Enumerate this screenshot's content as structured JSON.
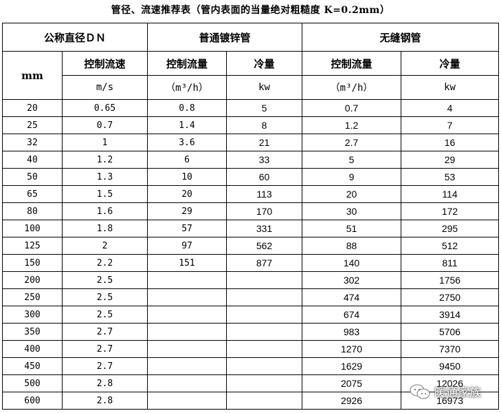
{
  "title": "管径、流速推荐表（管内表面的当量绝对粗糙度 K=0.2mm）",
  "header": {
    "dn": "公称直径ＤＮ",
    "galvanized": "普通镀锌管",
    "seamless": "无缝钢管",
    "mm": "mm",
    "control_speed": "控制流速",
    "control_flow": "控制流量",
    "cooling": "冷量",
    "unit_ms": "m/s",
    "unit_flow": "（m³/h）",
    "unit_kw": "kw"
  },
  "rows": [
    {
      "dn": "20",
      "speed": "0.65",
      "g_flow": "0.8",
      "g_kw": "5",
      "s_flow": "0.7",
      "s_kw": "4"
    },
    {
      "dn": "25",
      "speed": "0.7",
      "g_flow": "1.4",
      "g_kw": "8",
      "s_flow": "1.2",
      "s_kw": "7"
    },
    {
      "dn": "32",
      "speed": "1",
      "g_flow": "3.6",
      "g_kw": "21",
      "s_flow": "2.7",
      "s_kw": "16"
    },
    {
      "dn": "40",
      "speed": "1.2",
      "g_flow": "6",
      "g_kw": "33",
      "s_flow": "5",
      "s_kw": "29"
    },
    {
      "dn": "50",
      "speed": "1.3",
      "g_flow": "10",
      "g_kw": "60",
      "s_flow": "9",
      "s_kw": "53"
    },
    {
      "dn": "65",
      "speed": "1.5",
      "g_flow": "20",
      "g_kw": "113",
      "s_flow": "20",
      "s_kw": "114"
    },
    {
      "dn": "80",
      "speed": "1.6",
      "g_flow": "29",
      "g_kw": "170",
      "s_flow": "30",
      "s_kw": "172"
    },
    {
      "dn": "100",
      "speed": "1.8",
      "g_flow": "57",
      "g_kw": "331",
      "s_flow": "51",
      "s_kw": "295"
    },
    {
      "dn": "125",
      "speed": "2",
      "g_flow": "97",
      "g_kw": "562",
      "s_flow": "88",
      "s_kw": "512"
    },
    {
      "dn": "150",
      "speed": "2.2",
      "g_flow": "151",
      "g_kw": "877",
      "s_flow": "140",
      "s_kw": "811"
    },
    {
      "dn": "200",
      "speed": "2.5",
      "g_flow": "",
      "g_kw": "",
      "s_flow": "302",
      "s_kw": "1756"
    },
    {
      "dn": "250",
      "speed": "2.5",
      "g_flow": "",
      "g_kw": "",
      "s_flow": "474",
      "s_kw": "2750"
    },
    {
      "dn": "300",
      "speed": "2.5",
      "g_flow": "",
      "g_kw": "",
      "s_flow": "674",
      "s_kw": "3914"
    },
    {
      "dn": "350",
      "speed": "2.7",
      "g_flow": "",
      "g_kw": "",
      "s_flow": "983",
      "s_kw": "5706"
    },
    {
      "dn": "400",
      "speed": "2.7",
      "g_flow": "",
      "g_kw": "",
      "s_flow": "1270",
      "s_kw": "7370"
    },
    {
      "dn": "450",
      "speed": "2.7",
      "g_flow": "",
      "g_kw": "",
      "s_flow": "1629",
      "s_kw": "9450"
    },
    {
      "dn": "500",
      "speed": "2.8",
      "g_flow": "",
      "g_kw": "",
      "s_flow": "2075",
      "s_kw": "12026"
    },
    {
      "dn": "600",
      "speed": "2.8",
      "g_flow": "",
      "g_kw": "",
      "s_flow": "2926",
      "s_kw": "16973"
    }
  ],
  "watermark": {
    "text": "暖通家族",
    "icon": "wechat-chat-icon"
  }
}
